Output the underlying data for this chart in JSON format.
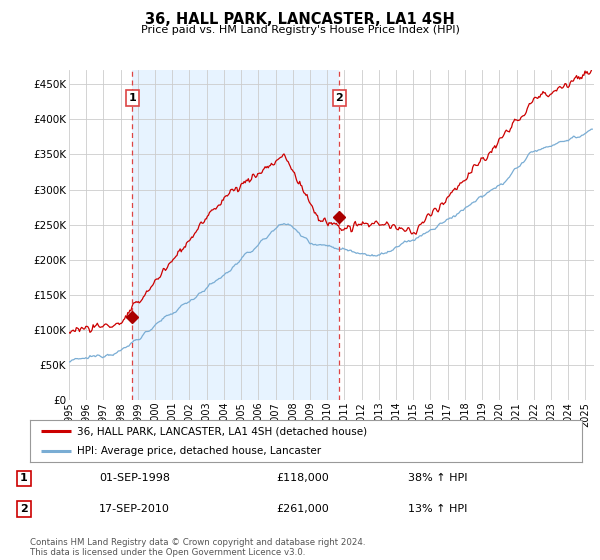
{
  "title": "36, HALL PARK, LANCASTER, LA1 4SH",
  "subtitle": "Price paid vs. HM Land Registry's House Price Index (HPI)",
  "ytick_vals": [
    0,
    50000,
    100000,
    150000,
    200000,
    250000,
    300000,
    350000,
    400000,
    450000
  ],
  "ylim": [
    0,
    470000
  ],
  "xlim_start": 1995.0,
  "xlim_end": 2025.5,
  "purchase1_x": 1998.67,
  "purchase1_y": 118000,
  "purchase2_x": 2010.71,
  "purchase2_y": 261000,
  "purchase1_date": "01-SEP-1998",
  "purchase1_price": "£118,000",
  "purchase1_hpi": "38% ↑ HPI",
  "purchase2_date": "17-SEP-2010",
  "purchase2_price": "£261,000",
  "purchase2_hpi": "13% ↑ HPI",
  "legend_property": "36, HALL PARK, LANCASTER, LA1 4SH (detached house)",
  "legend_hpi": "HPI: Average price, detached house, Lancaster",
  "footer": "Contains HM Land Registry data © Crown copyright and database right 2024.\nThis data is licensed under the Open Government Licence v3.0.",
  "line_color_property": "#cc0000",
  "line_color_hpi": "#7aadd4",
  "shade_color": "#ddeeff",
  "vline_color": "#dd4444",
  "marker_color": "#aa0000",
  "bg_color": "#ffffff",
  "grid_color": "#cccccc"
}
